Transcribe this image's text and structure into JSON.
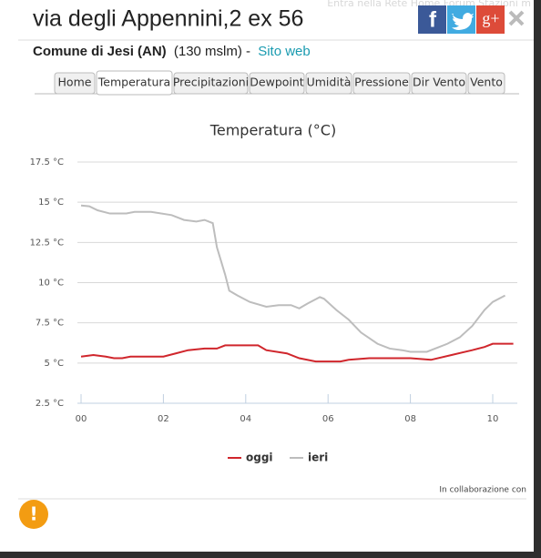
{
  "header": {
    "title": "via degli Appennini,2 ex 56",
    "top_nav": "Entra nella Rete   Home   Forum   Stazioni m",
    "subtitle": {
      "place": "Comune di Jesi (AN)",
      "altitude": "(130 mslm) -",
      "link": "Sito web"
    },
    "social": [
      "f",
      "g+"
    ]
  },
  "tabs": [
    "Home",
    "Temperatura",
    "Precipitazioni",
    "Dewpoint",
    "Umidità",
    "Pressione",
    "Dir Vento",
    "Vento"
  ],
  "active_tab": 1,
  "chart_data": {
    "type": "line",
    "title": "Temperatura (°C)",
    "xlim": [
      0,
      10.55
    ],
    "xticks": [
      {
        "value": 0,
        "label": "00"
      },
      {
        "value": 2,
        "label": "02"
      },
      {
        "value": 4,
        "label": "04"
      },
      {
        "value": 6,
        "label": "06"
      },
      {
        "value": 8,
        "label": "08"
      },
      {
        "value": 10,
        "label": "10"
      }
    ],
    "ylim": [
      2.5,
      17.5
    ],
    "yticks": [
      {
        "value": 2.5,
        "label": "2.5 °C"
      },
      {
        "value": 5,
        "label": "5 °C"
      },
      {
        "value": 7.5,
        "label": "7.5 °C"
      },
      {
        "value": 10,
        "label": "10 °C"
      },
      {
        "value": 12.5,
        "label": "12.5 °C"
      },
      {
        "value": 15,
        "label": "15 °C"
      },
      {
        "value": 17.5,
        "label": "17.5 °C"
      }
    ],
    "grid": true,
    "series": [
      {
        "name": "oggi",
        "color": "#d0262c",
        "x": [
          0,
          0.3,
          0.6,
          0.8,
          1,
          1.2,
          2,
          2.3,
          2.6,
          3,
          3.3,
          3.5,
          4.3,
          4.5,
          5,
          5.3,
          5.7,
          6.3,
          6.5,
          7,
          8,
          8.5,
          9,
          9.5,
          9.8,
          10,
          10.5
        ],
        "values": [
          5.4,
          5.5,
          5.4,
          5.3,
          5.3,
          5.4,
          5.4,
          5.6,
          5.8,
          5.9,
          5.9,
          6.1,
          6.1,
          5.8,
          5.6,
          5.3,
          5.1,
          5.1,
          5.2,
          5.3,
          5.3,
          5.2,
          5.5,
          5.8,
          6.0,
          6.2,
          6.2
        ]
      },
      {
        "name": "ieri",
        "color": "#bdbdbd",
        "x": [
          0,
          0.2,
          0.4,
          0.7,
          1.1,
          1.3,
          1.7,
          2.2,
          2.5,
          2.8,
          3,
          3.2,
          3.3,
          3.5,
          3.6,
          3.8,
          4.1,
          4.5,
          4.8,
          5.1,
          5.3,
          5.5,
          5.8,
          5.9,
          6.2,
          6.5,
          6.8,
          7.2,
          7.5,
          7.8,
          8,
          8.4,
          8.6,
          8.9,
          9.2,
          9.5,
          9.8,
          10,
          10.3
        ],
        "values": [
          14.8,
          14.75,
          14.5,
          14.3,
          14.3,
          14.4,
          14.4,
          14.2,
          13.9,
          13.8,
          13.9,
          13.7,
          12.2,
          10.5,
          9.5,
          9.2,
          8.8,
          8.5,
          8.6,
          8.6,
          8.4,
          8.7,
          9.1,
          9.0,
          8.3,
          7.7,
          6.9,
          6.2,
          5.9,
          5.8,
          5.7,
          5.7,
          5.9,
          6.2,
          6.6,
          7.3,
          8.3,
          8.8,
          9.2
        ]
      }
    ]
  },
  "footer": {
    "credit": "In collaborazione con",
    "alert": "!"
  }
}
